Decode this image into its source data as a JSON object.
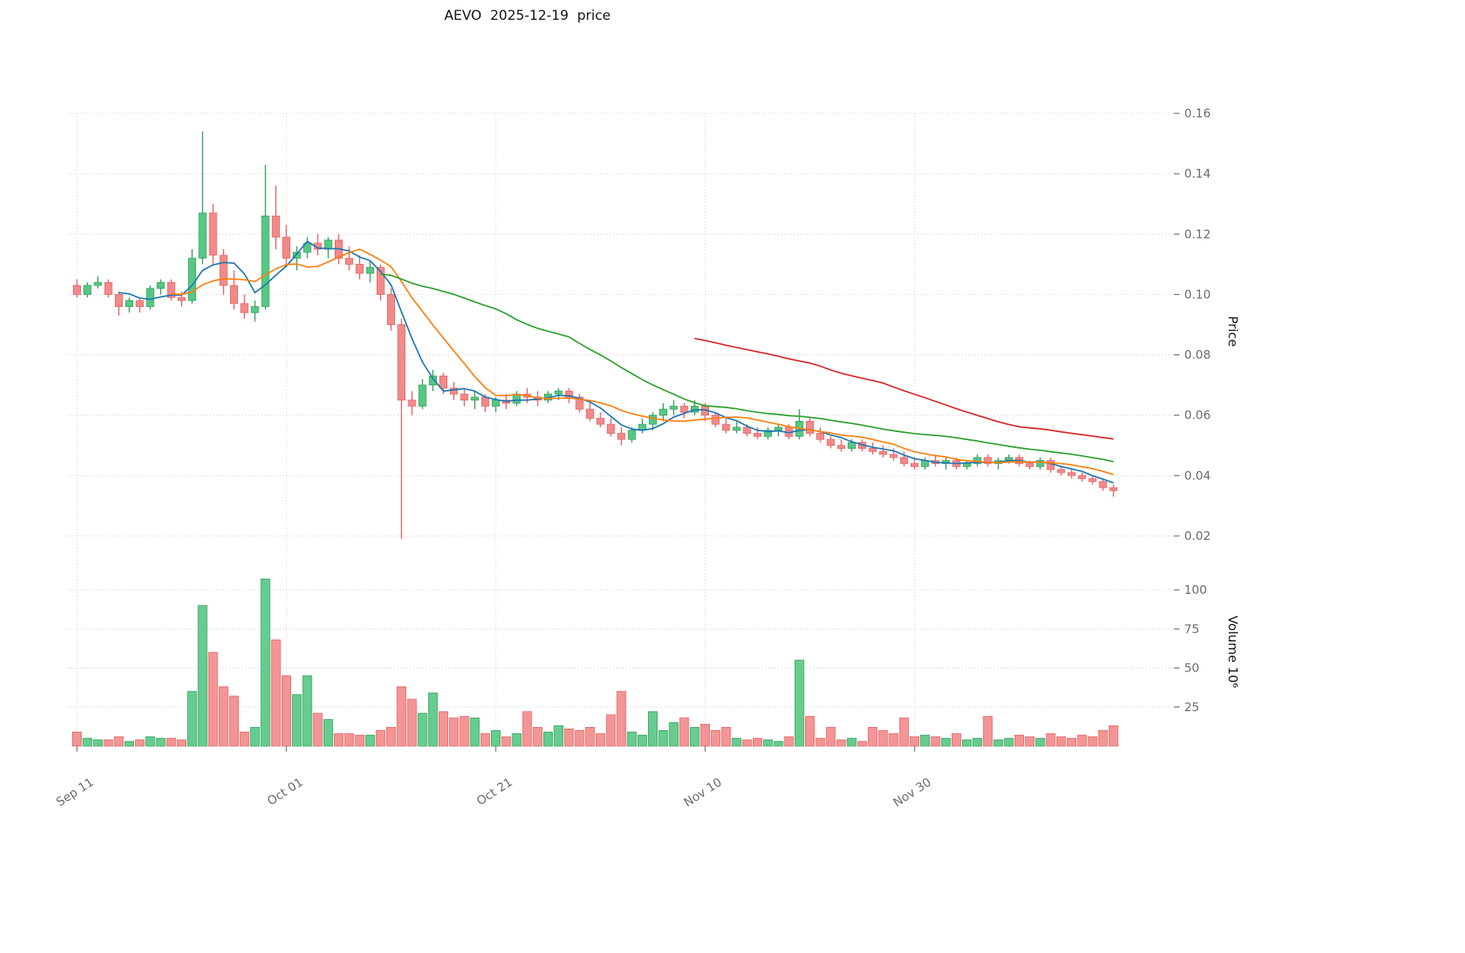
{
  "title": "AEVO  2025-12-19  price",
  "axes": {
    "price_label": "Price",
    "volume_label": "Volume  10⁶",
    "price_ticks": [
      0.02,
      0.04,
      0.06,
      0.08,
      0.1,
      0.12,
      0.14,
      0.16
    ],
    "volume_ticks": [
      25,
      50,
      75,
      100
    ],
    "x_ticks": [
      {
        "label": "Sep 11",
        "index": 0
      },
      {
        "label": "Oct 01",
        "index": 20
      },
      {
        "label": "Oct 21",
        "index": 40
      },
      {
        "label": "Nov 10",
        "index": 60
      },
      {
        "label": "Nov 30",
        "index": 80
      }
    ]
  },
  "style": {
    "background": "#ffffff",
    "up_color": "#57c784",
    "down_color": "#f28a8a",
    "up_edge": "#2f9e58",
    "down_edge": "#e06060",
    "grid_color": "#c9c9c9",
    "tick_text_color": "#6b6b6b",
    "title_color": "#141414"
  },
  "chart_data": {
    "type": "candlestick",
    "symbol": "AEVO",
    "as_of_date": "2025-12-19",
    "title": "AEVO  2025-12-19  price",
    "ylabel_price": "Price",
    "ylabel_volume": "Volume  10⁶",
    "price_ylim": [
      0.015,
      0.168
    ],
    "volume_ylim": [
      0,
      120
    ],
    "grid": true,
    "legend": false,
    "dates": [
      "2025-09-11",
      "2025-09-12",
      "2025-09-13",
      "2025-09-14",
      "2025-09-15",
      "2025-09-16",
      "2025-09-17",
      "2025-09-18",
      "2025-09-19",
      "2025-09-20",
      "2025-09-21",
      "2025-09-22",
      "2025-09-23",
      "2025-09-24",
      "2025-09-25",
      "2025-09-26",
      "2025-09-27",
      "2025-09-28",
      "2025-09-29",
      "2025-09-30",
      "2025-10-01",
      "2025-10-02",
      "2025-10-03",
      "2025-10-04",
      "2025-10-05",
      "2025-10-06",
      "2025-10-07",
      "2025-10-08",
      "2025-10-09",
      "2025-10-10",
      "2025-10-11",
      "2025-10-12",
      "2025-10-13",
      "2025-10-14",
      "2025-10-15",
      "2025-10-16",
      "2025-10-17",
      "2025-10-18",
      "2025-10-19",
      "2025-10-20",
      "2025-10-21",
      "2025-10-22",
      "2025-10-23",
      "2025-10-24",
      "2025-10-25",
      "2025-10-26",
      "2025-10-27",
      "2025-10-28",
      "2025-10-29",
      "2025-10-30",
      "2025-10-31",
      "2025-11-01",
      "2025-11-02",
      "2025-11-03",
      "2025-11-04",
      "2025-11-05",
      "2025-11-06",
      "2025-11-07",
      "2025-11-08",
      "2025-11-09",
      "2025-11-10",
      "2025-11-11",
      "2025-11-12",
      "2025-11-13",
      "2025-11-14",
      "2025-11-15",
      "2025-11-16",
      "2025-11-17",
      "2025-11-18",
      "2025-11-19",
      "2025-11-20",
      "2025-11-21",
      "2025-11-22",
      "2025-11-23",
      "2025-11-24",
      "2025-11-25",
      "2025-11-26",
      "2025-11-27",
      "2025-11-28",
      "2025-11-29",
      "2025-11-30",
      "2025-12-01",
      "2025-12-02",
      "2025-12-03",
      "2025-12-04",
      "2025-12-05",
      "2025-12-06",
      "2025-12-07",
      "2025-12-08",
      "2025-12-09",
      "2025-12-10",
      "2025-12-11",
      "2025-12-12",
      "2025-12-13",
      "2025-12-14",
      "2025-12-15",
      "2025-12-16",
      "2025-12-17",
      "2025-12-18",
      "2025-12-19"
    ],
    "ohlc": [
      [
        0.103,
        0.105,
        0.099,
        0.1
      ],
      [
        0.1,
        0.104,
        0.099,
        0.103
      ],
      [
        0.103,
        0.106,
        0.102,
        0.104
      ],
      [
        0.104,
        0.105,
        0.099,
        0.1
      ],
      [
        0.1,
        0.101,
        0.093,
        0.096
      ],
      [
        0.096,
        0.099,
        0.094,
        0.098
      ],
      [
        0.098,
        0.099,
        0.094,
        0.096
      ],
      [
        0.096,
        0.103,
        0.095,
        0.102
      ],
      [
        0.102,
        0.105,
        0.1,
        0.104
      ],
      [
        0.104,
        0.105,
        0.098,
        0.099
      ],
      [
        0.099,
        0.101,
        0.096,
        0.098
      ],
      [
        0.098,
        0.115,
        0.097,
        0.112
      ],
      [
        0.112,
        0.154,
        0.11,
        0.127
      ],
      [
        0.127,
        0.13,
        0.11,
        0.113
      ],
      [
        0.113,
        0.115,
        0.1,
        0.103
      ],
      [
        0.103,
        0.108,
        0.095,
        0.097
      ],
      [
        0.097,
        0.1,
        0.092,
        0.094
      ],
      [
        0.094,
        0.098,
        0.091,
        0.096
      ],
      [
        0.096,
        0.143,
        0.095,
        0.126
      ],
      [
        0.126,
        0.136,
        0.115,
        0.119
      ],
      [
        0.119,
        0.123,
        0.109,
        0.112
      ],
      [
        0.112,
        0.116,
        0.108,
        0.114
      ],
      [
        0.114,
        0.119,
        0.112,
        0.117
      ],
      [
        0.117,
        0.12,
        0.113,
        0.115
      ],
      [
        0.115,
        0.119,
        0.112,
        0.118
      ],
      [
        0.118,
        0.12,
        0.11,
        0.112
      ],
      [
        0.112,
        0.116,
        0.108,
        0.11
      ],
      [
        0.11,
        0.113,
        0.105,
        0.107
      ],
      [
        0.107,
        0.111,
        0.104,
        0.109
      ],
      [
        0.109,
        0.11,
        0.098,
        0.1
      ],
      [
        0.1,
        0.102,
        0.088,
        0.09
      ],
      [
        0.09,
        0.092,
        0.019,
        0.065
      ],
      [
        0.065,
        0.068,
        0.06,
        0.063
      ],
      [
        0.063,
        0.072,
        0.062,
        0.07
      ],
      [
        0.07,
        0.075,
        0.068,
        0.073
      ],
      [
        0.073,
        0.074,
        0.067,
        0.069
      ],
      [
        0.069,
        0.071,
        0.065,
        0.067
      ],
      [
        0.067,
        0.069,
        0.063,
        0.065
      ],
      [
        0.065,
        0.068,
        0.062,
        0.066
      ],
      [
        0.066,
        0.067,
        0.061,
        0.063
      ],
      [
        0.063,
        0.066,
        0.061,
        0.065
      ],
      [
        0.065,
        0.067,
        0.062,
        0.064
      ],
      [
        0.064,
        0.068,
        0.063,
        0.067
      ],
      [
        0.067,
        0.069,
        0.064,
        0.066
      ],
      [
        0.066,
        0.068,
        0.063,
        0.065
      ],
      [
        0.065,
        0.068,
        0.064,
        0.067
      ],
      [
        0.067,
        0.069,
        0.065,
        0.068
      ],
      [
        0.068,
        0.069,
        0.064,
        0.066
      ],
      [
        0.066,
        0.067,
        0.061,
        0.062
      ],
      [
        0.062,
        0.064,
        0.058,
        0.059
      ],
      [
        0.059,
        0.061,
        0.056,
        0.057
      ],
      [
        0.057,
        0.059,
        0.053,
        0.054
      ],
      [
        0.054,
        0.056,
        0.05,
        0.052
      ],
      [
        0.052,
        0.056,
        0.051,
        0.055
      ],
      [
        0.055,
        0.059,
        0.054,
        0.057
      ],
      [
        0.057,
        0.061,
        0.055,
        0.06
      ],
      [
        0.06,
        0.064,
        0.058,
        0.062
      ],
      [
        0.062,
        0.065,
        0.06,
        0.063
      ],
      [
        0.063,
        0.064,
        0.059,
        0.061
      ],
      [
        0.061,
        0.065,
        0.06,
        0.063
      ],
      [
        0.063,
        0.064,
        0.058,
        0.06
      ],
      [
        0.06,
        0.061,
        0.056,
        0.057
      ],
      [
        0.057,
        0.059,
        0.054,
        0.055
      ],
      [
        0.055,
        0.058,
        0.054,
        0.056
      ],
      [
        0.056,
        0.057,
        0.053,
        0.054
      ],
      [
        0.054,
        0.056,
        0.052,
        0.053
      ],
      [
        0.053,
        0.056,
        0.052,
        0.055
      ],
      [
        0.055,
        0.057,
        0.053,
        0.056
      ],
      [
        0.056,
        0.057,
        0.052,
        0.053
      ],
      [
        0.053,
        0.062,
        0.052,
        0.058
      ],
      [
        0.058,
        0.059,
        0.053,
        0.054
      ],
      [
        0.054,
        0.056,
        0.051,
        0.052
      ],
      [
        0.052,
        0.053,
        0.049,
        0.05
      ],
      [
        0.05,
        0.052,
        0.048,
        0.049
      ],
      [
        0.049,
        0.052,
        0.048,
        0.051
      ],
      [
        0.051,
        0.052,
        0.048,
        0.049
      ],
      [
        0.049,
        0.051,
        0.047,
        0.048
      ],
      [
        0.048,
        0.05,
        0.046,
        0.047
      ],
      [
        0.047,
        0.049,
        0.045,
        0.046
      ],
      [
        0.046,
        0.048,
        0.043,
        0.044
      ],
      [
        0.044,
        0.046,
        0.042,
        0.043
      ],
      [
        0.043,
        0.046,
        0.042,
        0.045
      ],
      [
        0.045,
        0.047,
        0.043,
        0.044
      ],
      [
        0.044,
        0.046,
        0.042,
        0.045
      ],
      [
        0.045,
        0.046,
        0.042,
        0.043
      ],
      [
        0.043,
        0.045,
        0.042,
        0.044
      ],
      [
        0.044,
        0.047,
        0.043,
        0.046
      ],
      [
        0.046,
        0.047,
        0.043,
        0.044
      ],
      [
        0.044,
        0.046,
        0.042,
        0.045
      ],
      [
        0.045,
        0.047,
        0.044,
        0.046
      ],
      [
        0.046,
        0.047,
        0.043,
        0.044
      ],
      [
        0.044,
        0.045,
        0.042,
        0.043
      ],
      [
        0.043,
        0.046,
        0.042,
        0.045
      ],
      [
        0.045,
        0.046,
        0.041,
        0.042
      ],
      [
        0.042,
        0.043,
        0.04,
        0.041
      ],
      [
        0.041,
        0.042,
        0.039,
        0.04
      ],
      [
        0.04,
        0.041,
        0.038,
        0.039
      ],
      [
        0.039,
        0.04,
        0.037,
        0.038
      ],
      [
        0.038,
        0.039,
        0.035,
        0.036
      ],
      [
        0.036,
        0.037,
        0.033,
        0.035
      ]
    ],
    "volume_millions": [
      9,
      5,
      4,
      4,
      6,
      3,
      4,
      6,
      5,
      5,
      4,
      35,
      90,
      60,
      38,
      32,
      9,
      12,
      107,
      68,
      45,
      33,
      45,
      21,
      17,
      8,
      8,
      7,
      7,
      10,
      12,
      38,
      30,
      21,
      34,
      22,
      18,
      19,
      18,
      8,
      10,
      6,
      8,
      22,
      12,
      9,
      13,
      11,
      10,
      12,
      8,
      20,
      35,
      9,
      7,
      22,
      10,
      15,
      18,
      12,
      14,
      10,
      12,
      5,
      4,
      5,
      4,
      3,
      6,
      55,
      19,
      5,
      12,
      4,
      5,
      3,
      12,
      10,
      8,
      18,
      6,
      7,
      6,
      5,
      8,
      4,
      5,
      19,
      4,
      5,
      7,
      6,
      5,
      8,
      6,
      5,
      7,
      6,
      10,
      13
    ],
    "moving_averages": [
      {
        "window": 5,
        "color": "#1f77b4"
      },
      {
        "window": 10,
        "color": "#ff7f0e"
      },
      {
        "window": 30,
        "color": "#2ca02c"
      },
      {
        "window": 60,
        "color": "#d62728"
      }
    ]
  }
}
